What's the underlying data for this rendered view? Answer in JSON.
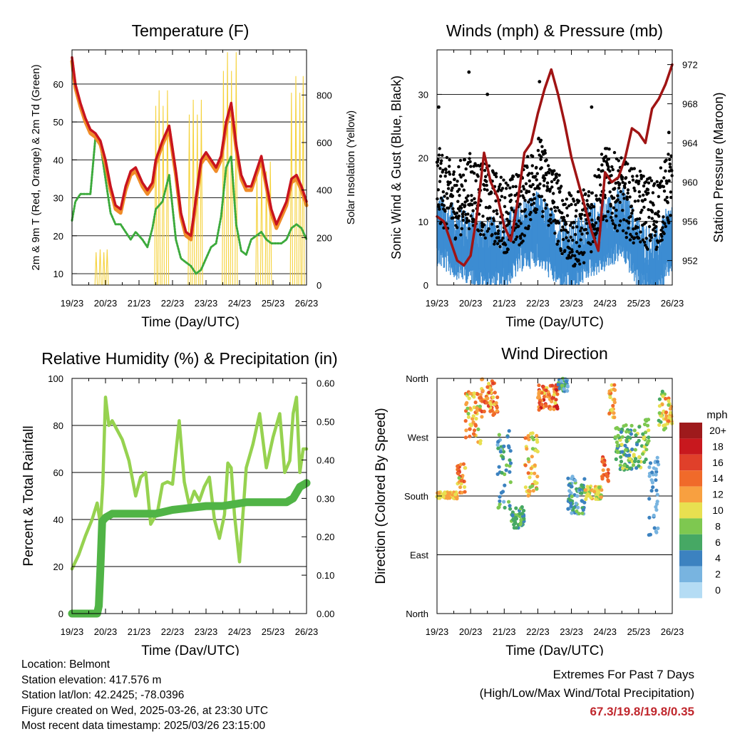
{
  "x_ticks": [
    "19/23",
    "20/23",
    "21/23",
    "22/23",
    "23/23",
    "24/23",
    "25/23",
    "26/23"
  ],
  "colors": {
    "temp_red": "#c8141e",
    "temp_orange": "#f08c28",
    "dewpoint_green": "#3caa3c",
    "solar_yellow": "#f5d23c",
    "wind_blue": "#3c8cd2",
    "gust_black": "#000000",
    "pressure_maroon": "#a01414",
    "rh_lightgreen": "#96d250",
    "precip_green": "#50b446"
  },
  "chart_data": [
    {
      "type": "line",
      "title": "Temperature (F)",
      "xlabel": "Time (Day/UTC)",
      "ylabel": "2m & 9m T (Red, Orange) & 2m Td (Green)",
      "y2label": "Solar Insolation (Yellow)",
      "ylim": [
        7,
        69
      ],
      "y2lim": [
        0,
        990
      ],
      "yticks": [
        10,
        20,
        30,
        40,
        50,
        60
      ],
      "y2ticks": [
        0,
        200,
        400,
        600,
        800
      ],
      "grid": true,
      "x": [
        0,
        0.1,
        0.25,
        0.4,
        0.55,
        0.7,
        0.85,
        1.0,
        1.15,
        1.3,
        1.45,
        1.6,
        1.75,
        1.9,
        2.1,
        2.25,
        2.4,
        2.5,
        2.7,
        2.9,
        3.1,
        3.25,
        3.4,
        3.55,
        3.7,
        3.85,
        4.0,
        4.15,
        4.3,
        4.45,
        4.6,
        4.75,
        4.9,
        5.05,
        5.2,
        5.35,
        5.5,
        5.65,
        5.8,
        5.95,
        6.1,
        6.25,
        6.4,
        6.55,
        6.7,
        6.85,
        7.0
      ],
      "series": [
        {
          "name": "2m T",
          "color": "temp_red",
          "values": [
            67,
            60,
            55,
            51,
            48,
            47,
            45,
            40,
            33,
            28,
            27,
            33,
            37,
            38,
            34,
            32,
            34,
            40,
            45,
            49,
            37,
            26,
            21,
            20,
            30,
            40,
            42,
            40,
            38,
            41,
            50,
            55,
            44,
            36,
            33,
            33,
            37,
            41,
            34,
            27,
            23,
            26,
            29,
            35,
            36,
            33,
            29
          ]
        },
        {
          "name": "9m T",
          "color": "temp_orange",
          "values": [
            66,
            59,
            54,
            50,
            47,
            46,
            44,
            39,
            32,
            27,
            26,
            32,
            36,
            37,
            33,
            31,
            33,
            39,
            44,
            48,
            36,
            25,
            20,
            19,
            29,
            39,
            41,
            39,
            37,
            40,
            49,
            54,
            43,
            35,
            32,
            32,
            36,
            40,
            33,
            26,
            22,
            25,
            28,
            34,
            35,
            32,
            28
          ]
        },
        {
          "name": "2m Td",
          "color": "dewpoint_green",
          "values": [
            24,
            29,
            31,
            31,
            31,
            46,
            44,
            35,
            26,
            23,
            23,
            21,
            19,
            21,
            19,
            17,
            22,
            27,
            29,
            36,
            19,
            14,
            13,
            12,
            10,
            11,
            14,
            17,
            18,
            25,
            38,
            41,
            23,
            16,
            15,
            19,
            20,
            21,
            19,
            18,
            18,
            18,
            19,
            22,
            23,
            22,
            19
          ]
        }
      ],
      "solar_insolation": {
        "name": "Solar Insolation",
        "color": "solar_yellow",
        "days": [
          {
            "start": 0.62,
            "peak": 150,
            "peaks": [
              0.72,
              0.84,
              0.95,
              1.05
            ]
          },
          {
            "start": 2.45,
            "peak": 820,
            "peaks": [
              2.5,
              2.6,
              2.72,
              2.85
            ]
          },
          {
            "start": 3.45,
            "peak": 780,
            "peaks": [
              3.5,
              3.62,
              3.74,
              3.86
            ]
          },
          {
            "start": 4.45,
            "peak": 980,
            "peaks": [
              4.52,
              4.64,
              4.76,
              4.9
            ]
          },
          {
            "start": 5.45,
            "peak": 520,
            "peaks": [
              5.52,
              5.66,
              5.8,
              5.92
            ]
          },
          {
            "start": 6.45,
            "peak": 880,
            "peaks": [
              6.55,
              6.68,
              6.8,
              6.9
            ]
          }
        ]
      }
    },
    {
      "type": "scatter",
      "title": "Winds (mph) & Pressure (mb)",
      "xlabel": "Time (Day/UTC)",
      "ylabel": "Sonic Wind & Gust (Blue, Black)",
      "y2label": "Station Pressure (Maroon)",
      "ylim": [
        0,
        37
      ],
      "y2lim": [
        949.5,
        973.5
      ],
      "yticks": [
        0,
        10,
        20,
        30
      ],
      "y2ticks": [
        952,
        956,
        960,
        964,
        968,
        972
      ],
      "grid": true,
      "wind_mean_envelope": {
        "x": [
          0,
          0.5,
          1.0,
          1.5,
          2.0,
          2.5,
          3.0,
          3.5,
          4.0,
          4.5,
          5.0,
          5.5,
          6.0,
          6.5,
          7.0
        ],
        "values": [
          10,
          8,
          7,
          6,
          6,
          9,
          10,
          7,
          5,
          8,
          9,
          11,
          6,
          4,
          9
        ]
      },
      "gust_envelope": {
        "x": [
          0,
          0.5,
          1.0,
          1.5,
          2.0,
          2.5,
          3.0,
          3.5,
          4.0,
          4.5,
          5.0,
          5.5,
          6.0,
          6.5,
          7.0
        ],
        "values": [
          18,
          15,
          17,
          15,
          13,
          14,
          20,
          15,
          10,
          12,
          18,
          16,
          14,
          13,
          18
        ]
      },
      "gust_outliers": [
        [
          0.95,
          33.5
        ],
        [
          1.5,
          30
        ],
        [
          3.05,
          32
        ],
        [
          4.6,
          28
        ],
        [
          0.05,
          28
        ],
        [
          6.9,
          24
        ]
      ],
      "pressure": {
        "name": "Station Pressure",
        "color": "pressure_maroon",
        "x": [
          0,
          0.2,
          0.4,
          0.6,
          0.8,
          1.0,
          1.2,
          1.4,
          1.6,
          1.8,
          2.0,
          2.2,
          2.4,
          2.6,
          2.8,
          3.0,
          3.2,
          3.4,
          3.6,
          3.8,
          4.0,
          4.2,
          4.4,
          4.6,
          4.8,
          5.0,
          5.2,
          5.4,
          5.6,
          5.8,
          6.0,
          6.2,
          6.4,
          6.6,
          6.8,
          7.0
        ],
        "values": [
          956.5,
          956,
          954,
          952,
          951.5,
          952.5,
          957,
          963,
          960,
          958.5,
          955.5,
          954,
          958,
          963,
          964,
          967,
          969.5,
          971.5,
          969,
          966,
          962.5,
          960,
          957.5,
          955,
          953,
          961,
          960,
          960.5,
          962.5,
          965.5,
          965,
          964,
          967.5,
          968.5,
          970,
          972
        ]
      }
    },
    {
      "type": "line",
      "title": "Relative Humidity (%) & Precipitation (in)",
      "xlabel": "Time (Day/UTC)",
      "ylabel": "Percent & Total Rainfall",
      "ylim": [
        0,
        100
      ],
      "y2lim": [
        0,
        0.6125
      ],
      "yticks": [
        0,
        20,
        40,
        60,
        80,
        100
      ],
      "y2ticks": [
        0.0,
        0.1,
        0.2,
        0.3,
        0.4,
        0.5,
        0.6
      ],
      "grid": true,
      "series": [
        {
          "name": "Relative Humidity",
          "color": "rh_lightgreen",
          "x": [
            0,
            0.2,
            0.4,
            0.6,
            0.75,
            0.85,
            0.92,
            1.0,
            1.1,
            1.2,
            1.35,
            1.5,
            1.7,
            1.9,
            2.05,
            2.2,
            2.35,
            2.55,
            2.7,
            2.85,
            3.0,
            3.2,
            3.35,
            3.5,
            3.65,
            3.8,
            3.95,
            4.1,
            4.25,
            4.4,
            4.55,
            4.65,
            4.75,
            4.85,
            5.0,
            5.2,
            5.4,
            5.6,
            5.8,
            6.0,
            6.2,
            6.35,
            6.5,
            6.6,
            6.7,
            6.8,
            6.9,
            7.0
          ],
          "values": [
            19,
            25,
            33,
            40,
            47,
            38,
            55,
            92,
            80,
            82,
            78,
            74,
            65,
            50,
            58,
            60,
            38,
            43,
            55,
            56,
            55,
            82,
            56,
            46,
            52,
            48,
            54,
            58,
            40,
            32,
            42,
            64,
            62,
            42,
            22,
            62,
            72,
            85,
            62,
            75,
            85,
            60,
            65,
            85,
            92,
            60,
            70,
            70
          ]
        },
        {
          "name": "Total Rainfall",
          "color": "precip_green",
          "axis": "y2",
          "x": [
            0,
            0.4,
            0.75,
            0.8,
            0.85,
            0.9,
            1.0,
            1.2,
            1.8,
            2.5,
            3.0,
            4.0,
            4.5,
            5.2,
            6.0,
            6.4,
            6.6,
            6.8,
            7.0
          ],
          "values": [
            0,
            0,
            0,
            0.02,
            0.12,
            0.24,
            0.25,
            0.26,
            0.26,
            0.26,
            0.27,
            0.28,
            0.28,
            0.29,
            0.29,
            0.29,
            0.3,
            0.33,
            0.34
          ]
        }
      ]
    },
    {
      "type": "scatter",
      "title": "Wind Direction",
      "xlabel": "Time (Day/UTC)",
      "ylabel": "Direction (Colored By Speed)",
      "ylim": [
        0,
        360
      ],
      "yticks": [
        "North",
        "East",
        "South",
        "West",
        "North"
      ],
      "ytick_values": [
        0,
        90,
        180,
        270,
        360
      ],
      "grid": true,
      "legend": {
        "title": "mph",
        "position": "right",
        "labels": [
          "20+",
          "18",
          "16",
          "14",
          "12",
          "10",
          "8",
          "6",
          "4",
          "2",
          "0"
        ],
        "colors": [
          "#9e1a1c",
          "#c8181e",
          "#e0402a",
          "#f06a2a",
          "#f8a040",
          "#e8e050",
          "#7ec850",
          "#46a864",
          "#3c82c0",
          "#78b4e0",
          "#b4dcf4"
        ]
      },
      "clusters": [
        {
          "x": [
            0.0,
            0.6
          ],
          "dir": [
            176,
            186
          ],
          "speed": [
            9,
            12
          ]
        },
        {
          "x": [
            0.6,
            0.85
          ],
          "dir": [
            180,
            230
          ],
          "speed": [
            8,
            16
          ]
        },
        {
          "x": [
            0.85,
            1.3
          ],
          "dir": [
            260,
            340
          ],
          "speed": [
            8,
            14
          ]
        },
        {
          "x": [
            1.3,
            1.8
          ],
          "dir": [
            300,
            360
          ],
          "speed": [
            10,
            16
          ]
        },
        {
          "x": [
            1.8,
            2.2
          ],
          "dir": [
            160,
            280
          ],
          "speed": [
            2,
            9
          ]
        },
        {
          "x": [
            2.2,
            2.6
          ],
          "dir": [
            130,
            165
          ],
          "speed": [
            4,
            8
          ]
        },
        {
          "x": [
            2.6,
            3.0
          ],
          "dir": [
            180,
            280
          ],
          "speed": [
            8,
            14
          ]
        },
        {
          "x": [
            3.0,
            3.6
          ],
          "dir": [
            310,
            350
          ],
          "speed": [
            10,
            18
          ]
        },
        {
          "x": [
            3.6,
            3.9
          ],
          "dir": [
            340,
            360
          ],
          "speed": [
            2,
            8
          ]
        },
        {
          "x": [
            3.9,
            4.4
          ],
          "dir": [
            150,
            210
          ],
          "speed": [
            2,
            8
          ]
        },
        {
          "x": [
            4.4,
            4.9
          ],
          "dir": [
            175,
            195
          ],
          "speed": [
            8,
            12
          ]
        },
        {
          "x": [
            4.9,
            5.1
          ],
          "dir": [
            200,
            240
          ],
          "speed": [
            12,
            18
          ]
        },
        {
          "x": [
            5.1,
            5.3
          ],
          "dir": [
            300,
            350
          ],
          "speed": [
            8,
            14
          ]
        },
        {
          "x": [
            5.3,
            6.1
          ],
          "dir": [
            220,
            290
          ],
          "speed": [
            4,
            10
          ]
        },
        {
          "x": [
            6.1,
            6.3
          ],
          "dir": [
            230,
            300
          ],
          "speed": [
            6,
            10
          ]
        },
        {
          "x": [
            6.3,
            6.6
          ],
          "dir": [
            120,
            240
          ],
          "speed": [
            1,
            5
          ]
        },
        {
          "x": [
            6.6,
            6.8
          ],
          "dir": [
            280,
            340
          ],
          "speed": [
            6,
            12
          ]
        },
        {
          "x": [
            6.8,
            7.0
          ],
          "dir": [
            290,
            330
          ],
          "speed": [
            8,
            14
          ]
        }
      ]
    }
  ],
  "info": {
    "location": "Location: Belmont",
    "elevation": "Station elevation: 417.576 m",
    "latlon": "Station lat/lon: 42.2425; -78.0396",
    "created": "Figure created on Wed, 2025-03-26, at 23:30 UTC",
    "recent": "Most recent data timestamp: 2025/03/26 23:15:00"
  },
  "extremes": {
    "title": "Extremes For Past 7 Days",
    "subtitle": "(High/Low/Max Wind/Total Precipitation)",
    "values": "67.3/19.8/19.8/0.35"
  }
}
